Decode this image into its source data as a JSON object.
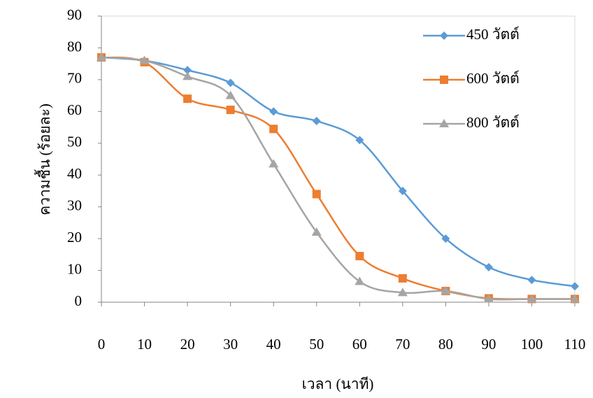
{
  "chart_data": {
    "type": "line",
    "xlabel": "เวลา (นาที)",
    "ylabel": "ความชื้น (ร้อยละ)",
    "x": [
      0,
      10,
      20,
      30,
      40,
      50,
      60,
      70,
      80,
      90,
      100,
      110
    ],
    "series": [
      {
        "name": "450 วัตต์",
        "color": "#5b9bd5",
        "marker": "diamond",
        "values": [
          77,
          76,
          73,
          69,
          60,
          57,
          51,
          35,
          20,
          11,
          7,
          5
        ]
      },
      {
        "name": "600 วัตต์",
        "color": "#ed7d31",
        "marker": "square",
        "values": [
          77,
          75.5,
          64,
          60.5,
          54.5,
          34,
          14.5,
          7.5,
          3.5,
          1.2,
          1,
          1
        ]
      },
      {
        "name": "800 วัตต์",
        "color": "#a5a5a5",
        "marker": "triangle",
        "values": [
          77,
          76,
          71,
          65,
          43.5,
          22,
          6.5,
          3,
          3.5,
          1,
          1,
          1
        ]
      }
    ],
    "xlim": [
      0,
      110
    ],
    "xticks": [
      0,
      10,
      20,
      30,
      40,
      50,
      60,
      70,
      80,
      90,
      100,
      110
    ],
    "ylim": [
      0,
      90
    ],
    "yticks": [
      0,
      10,
      20,
      30,
      40,
      50,
      60,
      70,
      80,
      90
    ],
    "legend": "upper right"
  }
}
